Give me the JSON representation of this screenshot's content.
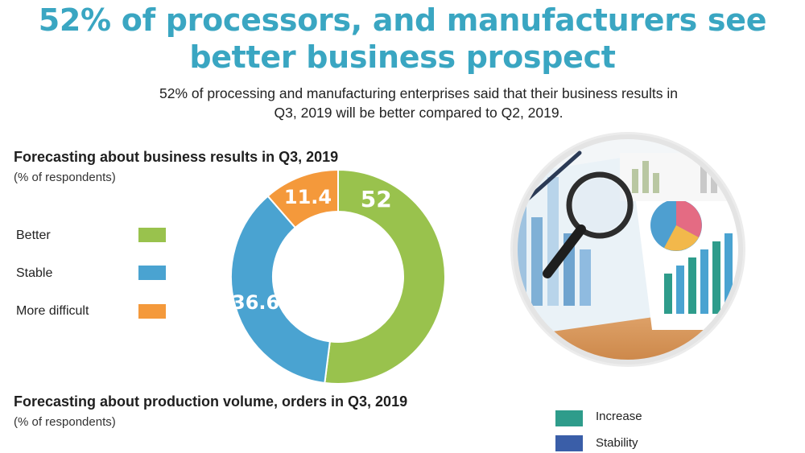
{
  "header": {
    "title_line1": "52% of processors, and manufacturers see",
    "title_line2": "better business prospect",
    "subtitle_line1": "52% of processing and manufacturing enterprises said that their business results in",
    "subtitle_line2": "Q3, 2019 will be better compared to Q2, 2019."
  },
  "section1": {
    "title": "Forecasting about business results in Q3, 2019",
    "note": "(% of respondents)"
  },
  "section2": {
    "title": "Forecasting about production volume, orders in Q3, 2019",
    "note": "(% of respondents)",
    "legend": [
      {
        "label": "Increase",
        "color": "#2e9c8b"
      },
      {
        "label": "Stability",
        "color": "#3a5ea8"
      }
    ]
  },
  "photo": {
    "icon": "magnifier-on-charts-photo"
  },
  "chart_data": {
    "type": "pie",
    "donut": true,
    "title": "Forecasting about business results in Q3, 2019",
    "categories": [
      "Better",
      "Stable",
      "More difficult"
    ],
    "values": [
      52,
      36.6,
      11.4
    ],
    "labels": [
      "52",
      "36.6",
      "11.4"
    ],
    "colors": [
      "#99c24d",
      "#4aa3d1",
      "#f4993b"
    ],
    "legend_placement": "left"
  }
}
